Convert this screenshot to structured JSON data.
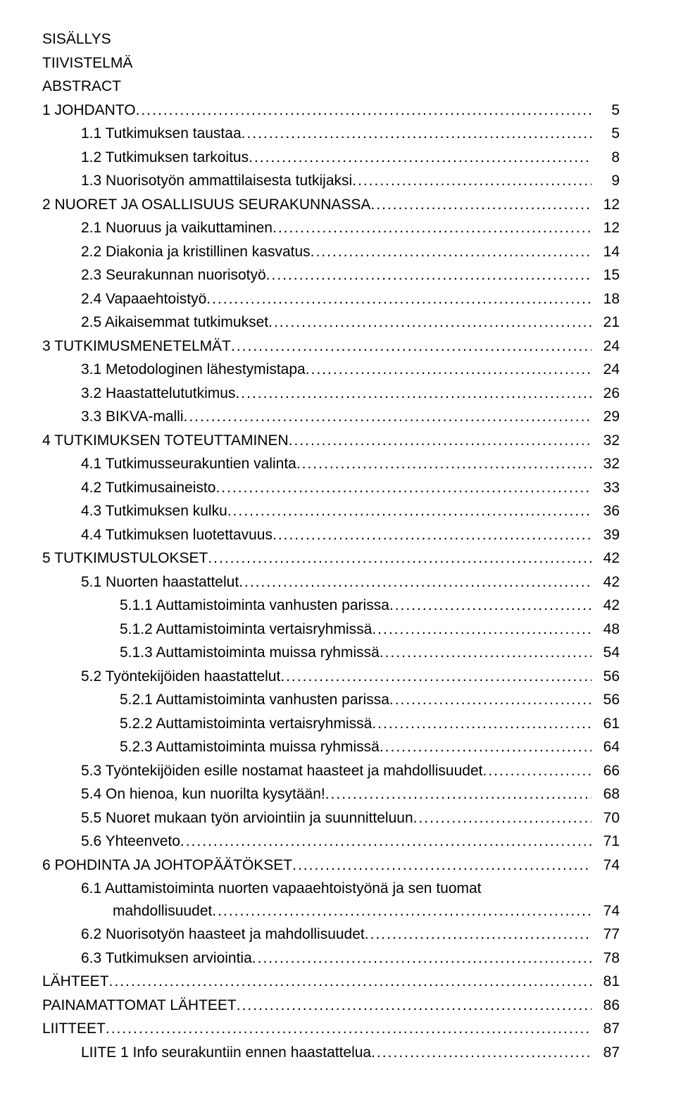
{
  "front_matter": [
    "SISÄLLYS",
    "TIIVISTELMÄ",
    "ABSTRACT"
  ],
  "toc": [
    {
      "level": 0,
      "label": "1 JOHDANTO",
      "page": "5"
    },
    {
      "level": 1,
      "label": "1.1 Tutkimuksen taustaa",
      "page": "5"
    },
    {
      "level": 1,
      "label": "1.2 Tutkimuksen tarkoitus",
      "page": "8"
    },
    {
      "level": 1,
      "label": "1.3 Nuorisotyön ammattilaisesta tutkijaksi",
      "page": "9"
    },
    {
      "level": 0,
      "label": "2 NUORET JA OSALLISUUS SEURAKUNNASSA",
      "page": "12"
    },
    {
      "level": 1,
      "label": "2.1 Nuoruus ja vaikuttaminen",
      "page": "12"
    },
    {
      "level": 1,
      "label": "2.2 Diakonia ja kristillinen kasvatus",
      "page": "14"
    },
    {
      "level": 1,
      "label": "2.3 Seurakunnan nuorisotyö",
      "page": "15"
    },
    {
      "level": 1,
      "label": "2.4 Vapaaehtoistyö",
      "page": "18"
    },
    {
      "level": 1,
      "label": "2.5 Aikaisemmat tutkimukset",
      "page": "21"
    },
    {
      "level": 0,
      "label": "3 TUTKIMUSMENETELMÄT",
      "page": "24"
    },
    {
      "level": 1,
      "label": "3.1 Metodologinen lähestymistapa",
      "page": "24"
    },
    {
      "level": 1,
      "label": "3.2 Haastattelututkimus",
      "page": "26"
    },
    {
      "level": 1,
      "label": "3.3 BIKVA-malli",
      "page": "29"
    },
    {
      "level": 0,
      "label": "4 TUTKIMUKSEN TOTEUTTAMINEN",
      "page": "32"
    },
    {
      "level": 1,
      "label": "4.1 Tutkimusseurakuntien valinta",
      "page": "32"
    },
    {
      "level": 1,
      "label": "4.2 Tutkimusaineisto",
      "page": "33"
    },
    {
      "level": 1,
      "label": "4.3 Tutkimuksen kulku",
      "page": "36"
    },
    {
      "level": 1,
      "label": "4.4 Tutkimuksen luotettavuus",
      "page": "39"
    },
    {
      "level": 0,
      "label": "5 TUTKIMUSTULOKSET",
      "page": "42"
    },
    {
      "level": 1,
      "label": "5.1 Nuorten haastattelut",
      "page": "42"
    },
    {
      "level": 2,
      "label": "5.1.1 Auttamistoiminta vanhusten parissa",
      "page": "42"
    },
    {
      "level": 2,
      "label": "5.1.2 Auttamistoiminta vertaisryhmissä",
      "page": "48"
    },
    {
      "level": 2,
      "label": "5.1.3 Auttamistoiminta muissa ryhmissä",
      "page": "54"
    },
    {
      "level": 1,
      "label": "5.2 Työntekijöiden haastattelut",
      "page": "56"
    },
    {
      "level": 2,
      "label": "5.2.1 Auttamistoiminta vanhusten parissa",
      "page": "56"
    },
    {
      "level": 2,
      "label": "5.2.2 Auttamistoiminta vertaisryhmissä",
      "page": "61"
    },
    {
      "level": 2,
      "label": "5.2.3 Auttamistoiminta muissa ryhmissä",
      "page": "64"
    },
    {
      "level": 1,
      "label": "5.3 Työntekijöiden esille nostamat haasteet ja mahdollisuudet",
      "page": "66"
    },
    {
      "level": 1,
      "label": "5.4 On hienoa, kun nuorilta kysytään!",
      "page": "68"
    },
    {
      "level": 1,
      "label": "5.5 Nuoret mukaan työn arviointiin ja suunnitteluun",
      "page": "70"
    },
    {
      "level": 1,
      "label": "5.6 Yhteenveto",
      "page": "71"
    },
    {
      "level": 0,
      "label": "6 POHDINTA JA JOHTOPÄÄTÖKSET",
      "page": "74"
    },
    {
      "level": 1,
      "label": "6.1 Auttamistoiminta nuorten vapaaehtoistyönä ja sen tuomat",
      "page": ""
    },
    {
      "level": 1,
      "continuation": true,
      "label": "mahdollisuudet",
      "page": "74"
    },
    {
      "level": 1,
      "label": "6.2 Nuorisotyön haasteet ja mahdollisuudet",
      "page": "77"
    },
    {
      "level": 1,
      "label": "6.3 Tutkimuksen arviointia",
      "page": "78"
    },
    {
      "level": 0,
      "label": "LÄHTEET",
      "page": "81"
    },
    {
      "level": 0,
      "label": "PAINAMATTOMAT LÄHTEET",
      "page": "86"
    },
    {
      "level": 0,
      "label": "LIITTEET",
      "page": "87"
    },
    {
      "level": 1,
      "label": "LIITE 1 Info seurakuntiin ennen haastattelua",
      "page": "87"
    }
  ]
}
